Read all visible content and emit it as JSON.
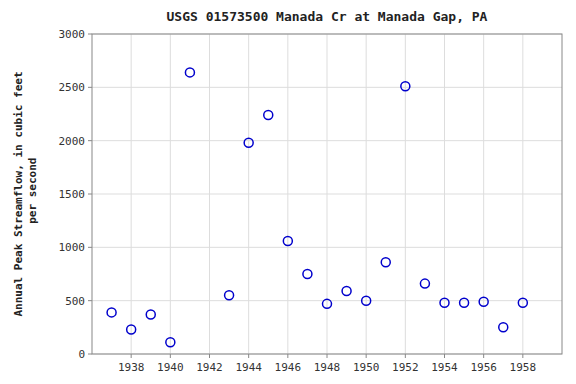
{
  "chart_data": {
    "type": "scatter",
    "title": "USGS 01573500 Manada Cr at Manada Gap, PA",
    "ylabel": "Annual Peak Streamflow, in cubic feet\n  per second",
    "x": [
      1937,
      1938,
      1939,
      1940,
      1941,
      1943,
      1944,
      1945,
      1946,
      1947,
      1948,
      1949,
      1950,
      1951,
      1952,
      1953,
      1954,
      1955,
      1956,
      1957,
      1958
    ],
    "values": [
      390,
      230,
      370,
      110,
      2640,
      550,
      1980,
      2240,
      1060,
      750,
      470,
      590,
      500,
      860,
      2510,
      660,
      480,
      480,
      490,
      250,
      480
    ],
    "xlim": [
      1936,
      1960
    ],
    "ylim": [
      0,
      3000
    ],
    "xticks": [
      1938,
      1940,
      1942,
      1944,
      1946,
      1948,
      1950,
      1952,
      1954,
      1956,
      1958
    ],
    "yticks": [
      0,
      500,
      1000,
      1500,
      2000,
      2500,
      3000
    ],
    "color": "#0000cc",
    "marker": "open-circle",
    "grid": true
  }
}
